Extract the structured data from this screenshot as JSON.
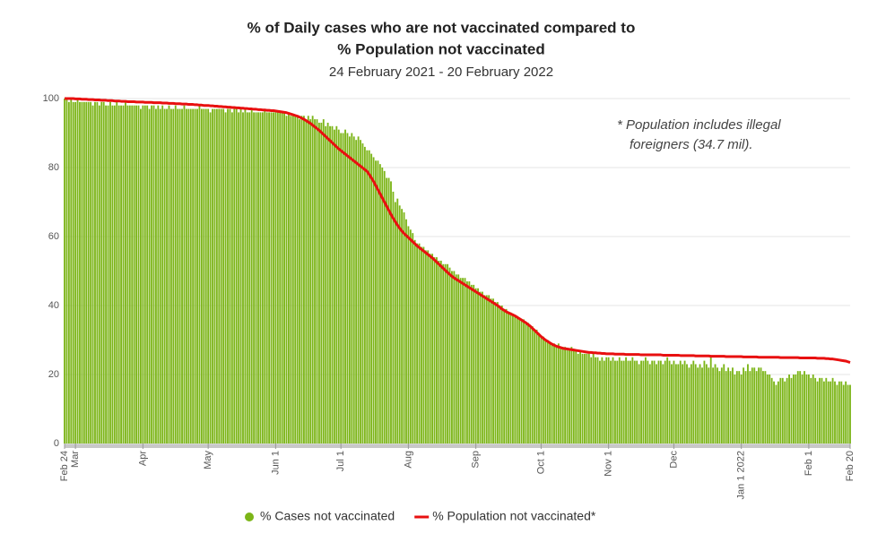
{
  "chart_data": {
    "type": "bar_line",
    "title": [
      "% of Daily cases who are not vaccinated compared to",
      "% Population not vaccinated"
    ],
    "subtitle": "24 February 2021 - 20 February 2022",
    "annotation": [
      "* Population includes illegal",
      "foreigners (34.7 mil)."
    ],
    "xlim": [
      0,
      361
    ],
    "xticks": [
      {
        "value": 0,
        "label": "Feb 24"
      },
      {
        "value": 5,
        "label": "Mar"
      },
      {
        "value": 36,
        "label": "Apr"
      },
      {
        "value": 66,
        "label": "May"
      },
      {
        "value": 97,
        "label": "Jun 1"
      },
      {
        "value": 127,
        "label": "Jul 1"
      },
      {
        "value": 158,
        "label": "Aug"
      },
      {
        "value": 189,
        "label": "Sep"
      },
      {
        "value": 219,
        "label": "Oct 1"
      },
      {
        "value": 250,
        "label": "Nov 1"
      },
      {
        "value": 280,
        "label": "Dec"
      },
      {
        "value": 311,
        "label": "Jan 1 2022"
      },
      {
        "value": 342,
        "label": "Feb 1"
      },
      {
        "value": 361,
        "label": "Feb 20"
      }
    ],
    "ylim": [
      0,
      100
    ],
    "yticks": [
      0,
      20,
      40,
      60,
      80,
      100
    ],
    "grid": true,
    "series": [
      {
        "name": "% Cases not vaccinated",
        "color": "#7cb518",
        "kind": "bar",
        "values": [
          100,
          100,
          99,
          100,
          99,
          99,
          100,
          99,
          99,
          99,
          99,
          99,
          99,
          98,
          99,
          99,
          98,
          99,
          99,
          98,
          98,
          99,
          98,
          98,
          99,
          98,
          98,
          98,
          99,
          98,
          98,
          98,
          98,
          98,
          98,
          97,
          98,
          98,
          98,
          97,
          98,
          98,
          97,
          98,
          97,
          98,
          97,
          97,
          98,
          97,
          97,
          98,
          97,
          97,
          97,
          98,
          97,
          97,
          97,
          97,
          97,
          97,
          98,
          97,
          97,
          97,
          97,
          96,
          97,
          97,
          97,
          97,
          97,
          97,
          96,
          97,
          97,
          96,
          97,
          97,
          96,
          97,
          96,
          97,
          96,
          96,
          97,
          96,
          96,
          96,
          96,
          96,
          97,
          96,
          96,
          96,
          96,
          96,
          96,
          96,
          96,
          96,
          95,
          96,
          95,
          95,
          95,
          95,
          94,
          95,
          95,
          94,
          95,
          94,
          95,
          94,
          94,
          93,
          93,
          94,
          92,
          93,
          92,
          92,
          91,
          92,
          91,
          90,
          90,
          91,
          90,
          89,
          90,
          89,
          88,
          89,
          88,
          87,
          86,
          85,
          85,
          84,
          83,
          82,
          82,
          81,
          80,
          79,
          77,
          77,
          76,
          73,
          70,
          71,
          69,
          68,
          67,
          65,
          63,
          62,
          61,
          59,
          58,
          58,
          57,
          57,
          56,
          56,
          55,
          55,
          54,
          54,
          53,
          53,
          52,
          52,
          52,
          51,
          50,
          50,
          49,
          49,
          48,
          48,
          48,
          47,
          47,
          46,
          46,
          45,
          45,
          44,
          44,
          43,
          43,
          43,
          42,
          42,
          41,
          41,
          40,
          40,
          39,
          39,
          38,
          38,
          37,
          37,
          37,
          36,
          36,
          36,
          35,
          35,
          34,
          34,
          33,
          33,
          32,
          31,
          31,
          30,
          30,
          29,
          29,
          29,
          28,
          29,
          28,
          28,
          28,
          27,
          27,
          28,
          27,
          27,
          26,
          27,
          26,
          26,
          26,
          26,
          25,
          26,
          25,
          25,
          24,
          25,
          24,
          25,
          25,
          24,
          25,
          24,
          24,
          25,
          24,
          24,
          25,
          24,
          24,
          25,
          24,
          24,
          23,
          24,
          24,
          25,
          24,
          23,
          24,
          24,
          23,
          24,
          24,
          23,
          24,
          25,
          24,
          23,
          24,
          23,
          23,
          24,
          23,
          24,
          23,
          22,
          23,
          24,
          23,
          22,
          23,
          22,
          24,
          23,
          22,
          25,
          22,
          23,
          22,
          21,
          22,
          23,
          21,
          22,
          21,
          22,
          20,
          21,
          21,
          20,
          22,
          21,
          23,
          21,
          22,
          22,
          21,
          22,
          22,
          21,
          21,
          20,
          20,
          19,
          18,
          17,
          18,
          19,
          19,
          18,
          19,
          20,
          19,
          20,
          20,
          21,
          21,
          20,
          21,
          20,
          20,
          19,
          20,
          19,
          18,
          19,
          19,
          18,
          19,
          18,
          18,
          19,
          18,
          17,
          18,
          18,
          17,
          18,
          17,
          17
        ]
      },
      {
        "name": "% Population not vaccinated*",
        "color": "#e81010",
        "kind": "line",
        "values": [
          100,
          100,
          100,
          100,
          100,
          99.9,
          99.9,
          99.9,
          99.8,
          99.8,
          99.8,
          99.7,
          99.7,
          99.7,
          99.6,
          99.6,
          99.6,
          99.5,
          99.5,
          99.5,
          99.4,
          99.4,
          99.4,
          99.3,
          99.3,
          99.3,
          99.2,
          99.2,
          99.2,
          99.1,
          99.1,
          99.1,
          99.1,
          99,
          99,
          99,
          99,
          98.9,
          98.9,
          98.9,
          98.9,
          98.8,
          98.8,
          98.8,
          98.8,
          98.7,
          98.7,
          98.7,
          98.6,
          98.6,
          98.6,
          98.5,
          98.5,
          98.5,
          98.4,
          98.4,
          98.4,
          98.3,
          98.3,
          98.3,
          98.2,
          98.2,
          98.1,
          98.1,
          98,
          98,
          98,
          97.9,
          97.9,
          97.8,
          97.8,
          97.7,
          97.7,
          97.6,
          97.6,
          97.5,
          97.5,
          97.4,
          97.4,
          97.3,
          97.3,
          97.2,
          97.2,
          97.1,
          97.1,
          97,
          97,
          96.9,
          96.9,
          96.8,
          96.8,
          96.7,
          96.7,
          96.6,
          96.6,
          96.5,
          96.5,
          96.4,
          96.3,
          96.2,
          96.1,
          96,
          95.9,
          95.7,
          95.5,
          95.3,
          95.1,
          94.9,
          94.6,
          94.3,
          94,
          93.6,
          93.2,
          92.8,
          92.3,
          91.8,
          91.3,
          90.8,
          90.2,
          89.6,
          89,
          88.4,
          87.8,
          87.2,
          86.6,
          86,
          85.4,
          84.9,
          84.4,
          83.9,
          83.4,
          82.9,
          82.4,
          81.9,
          81.4,
          80.9,
          80.4,
          79.9,
          79.4,
          78.9,
          78,
          77,
          76,
          74.8,
          73.6,
          72.4,
          71.2,
          70,
          68.8,
          67.6,
          66.4,
          65.3,
          64.3,
          63.3,
          62.4,
          61.6,
          60.9,
          60.3,
          59.7,
          59.1,
          58.5,
          57.9,
          57.3,
          56.8,
          56.3,
          55.8,
          55.3,
          54.8,
          54.3,
          53.8,
          53.2,
          52.6,
          52,
          51.4,
          50.8,
          50.2,
          49.6,
          49,
          48.5,
          48,
          47.6,
          47.2,
          46.8,
          46.4,
          46,
          45.6,
          45.2,
          44.8,
          44.4,
          44,
          43.6,
          43.2,
          42.8,
          42.4,
          42,
          41.6,
          41.2,
          40.8,
          40.4,
          40,
          39.5,
          39,
          38.6,
          38.2,
          37.9,
          37.6,
          37.3,
          37,
          36.6,
          36.2,
          35.8,
          35.4,
          35,
          34.5,
          34,
          33.4,
          32.8,
          32.2,
          31.6,
          31,
          30.5,
          30,
          29.6,
          29.2,
          28.8,
          28.5,
          28.2,
          28,
          27.8,
          27.6,
          27.5,
          27.4,
          27.3,
          27.2,
          27.1,
          27,
          26.9,
          26.8,
          26.7,
          26.6,
          26.5,
          26.4,
          26.4,
          26.3,
          26.3,
          26.2,
          26.2,
          26.1,
          26.1,
          26,
          26,
          26,
          26,
          25.9,
          25.9,
          25.9,
          25.9,
          25.9,
          25.8,
          25.8,
          25.8,
          25.8,
          25.8,
          25.8,
          25.8,
          25.7,
          25.7,
          25.7,
          25.7,
          25.7,
          25.7,
          25.7,
          25.7,
          25.7,
          25.7,
          25.6,
          25.6,
          25.6,
          25.6,
          25.6,
          25.6,
          25.6,
          25.6,
          25.5,
          25.5,
          25.5,
          25.5,
          25.5,
          25.5,
          25.5,
          25.4,
          25.4,
          25.4,
          25.4,
          25.4,
          25.4,
          25.4,
          25.3,
          25.3,
          25.3,
          25.3,
          25.3,
          25.3,
          25.3,
          25.2,
          25.2,
          25.2,
          25.2,
          25.2,
          25.2,
          25.2,
          25.2,
          25.1,
          25.1,
          25.1,
          25.1,
          25.1,
          25.1,
          25.1,
          25,
          25,
          25,
          25,
          25,
          25,
          25,
          25,
          25,
          25,
          24.9,
          24.9,
          24.9,
          24.9,
          24.9,
          24.9,
          24.9,
          24.9,
          24.9,
          24.8,
          24.8,
          24.8,
          24.8,
          24.8,
          24.8,
          24.8,
          24.8,
          24.7,
          24.7,
          24.7,
          24.7,
          24.6,
          24.6,
          24.5,
          24.5,
          24.4,
          24.3,
          24.2,
          24.1,
          24,
          23.9,
          23.7,
          23.5
        ]
      }
    ]
  }
}
